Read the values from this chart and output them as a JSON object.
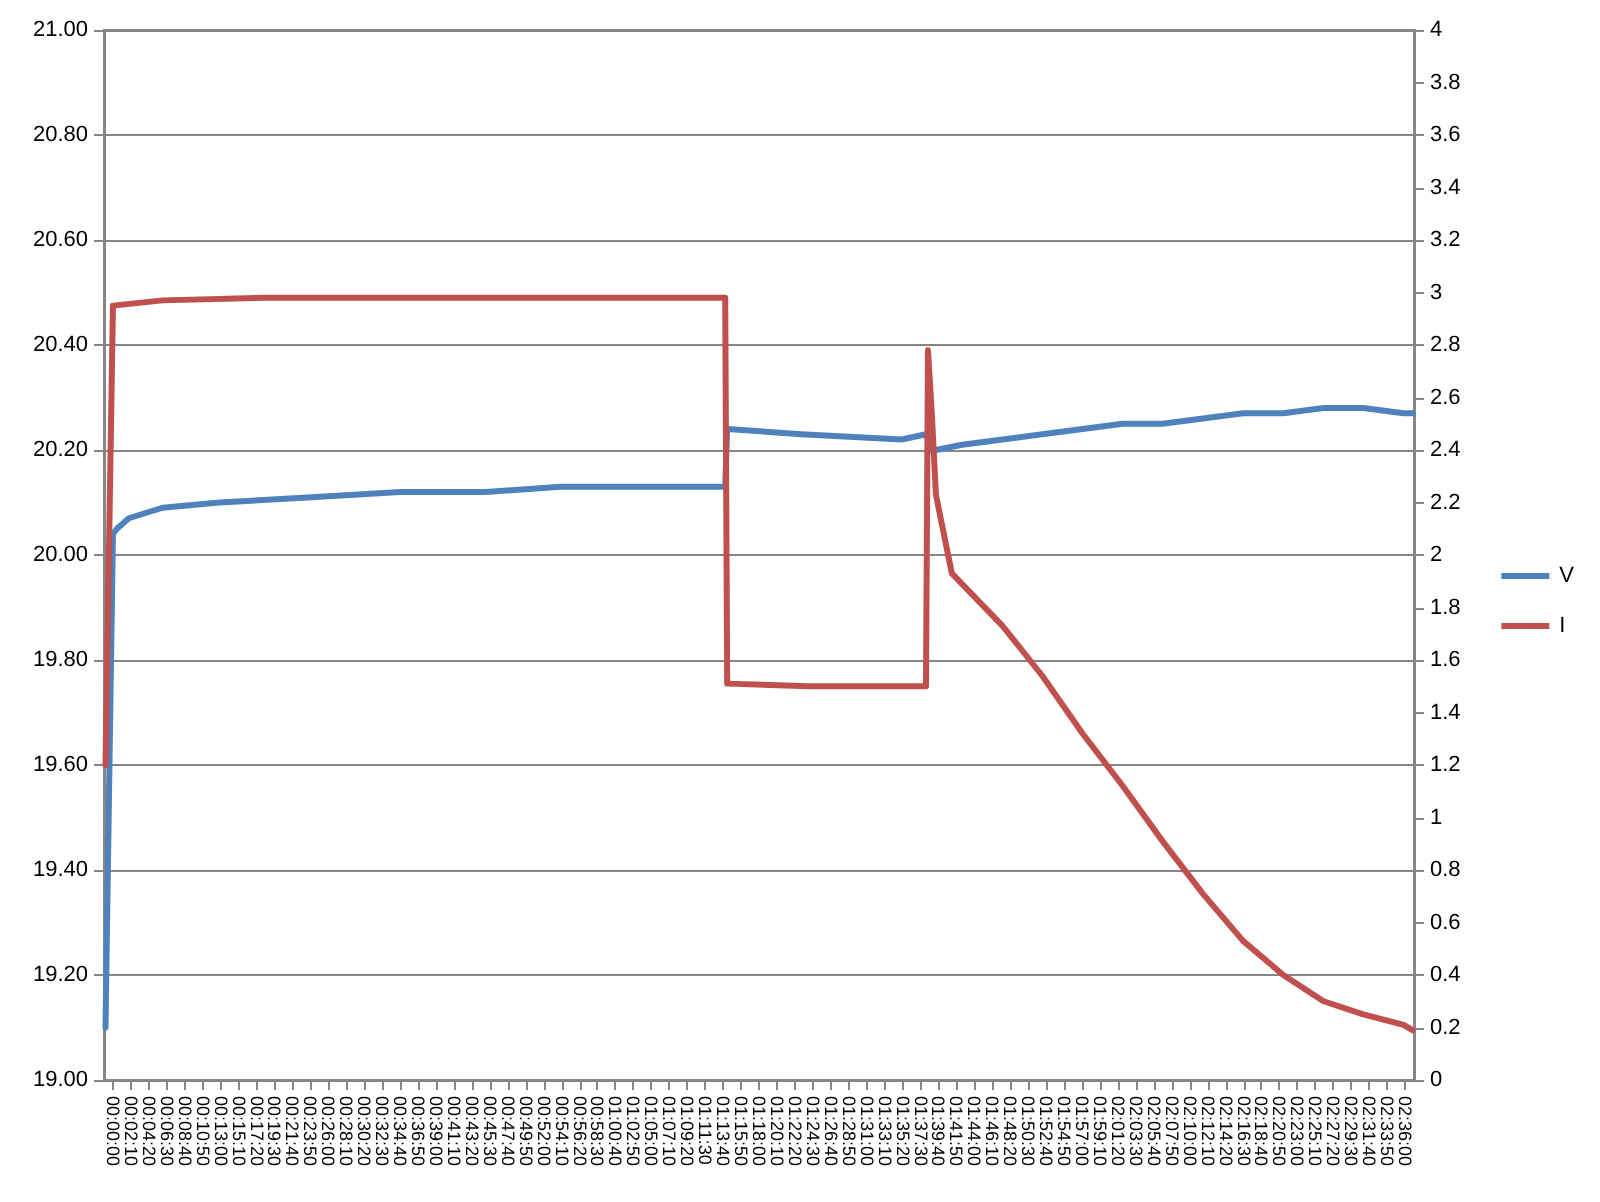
{
  "chart_data": {
    "type": "line",
    "legend": "right",
    "grid": "y",
    "marker": "none",
    "line_style": "solid",
    "xlim": [
      -0.018,
      2.618
    ],
    "xticks": [
      {
        "value": 0,
        "label": "00:00:00"
      },
      {
        "value": 0.0361,
        "label": "00:02:10"
      },
      {
        "value": 0.0722,
        "label": "00:04:20"
      },
      {
        "value": 0.1083,
        "label": "00:06:30"
      },
      {
        "value": 0.1444,
        "label": "00:08:40"
      },
      {
        "value": 0.1806,
        "label": "00:10:50"
      },
      {
        "value": 0.2167,
        "label": "00:13:00"
      },
      {
        "value": 0.2528,
        "label": "00:15:10"
      },
      {
        "value": 0.2889,
        "label": "00:17:20"
      },
      {
        "value": 0.325,
        "label": "00:19:30"
      },
      {
        "value": 0.3611,
        "label": "00:21:40"
      },
      {
        "value": 0.3972,
        "label": "00:23:50"
      },
      {
        "value": 0.4333,
        "label": "00:26:00"
      },
      {
        "value": 0.4694,
        "label": "00:28:10"
      },
      {
        "value": 0.5056,
        "label": "00:30:20"
      },
      {
        "value": 0.5417,
        "label": "00:32:30"
      },
      {
        "value": 0.5778,
        "label": "00:34:40"
      },
      {
        "value": 0.6139,
        "label": "00:36:50"
      },
      {
        "value": 0.65,
        "label": "00:39:00"
      },
      {
        "value": 0.6861,
        "label": "00:41:10"
      },
      {
        "value": 0.7222,
        "label": "00:43:20"
      },
      {
        "value": 0.7583,
        "label": "00:45:30"
      },
      {
        "value": 0.7944,
        "label": "00:47:40"
      },
      {
        "value": 0.8306,
        "label": "00:49:50"
      },
      {
        "value": 0.8667,
        "label": "00:52:00"
      },
      {
        "value": 0.9028,
        "label": "00:54:10"
      },
      {
        "value": 0.9389,
        "label": "00:56:20"
      },
      {
        "value": 0.975,
        "label": "00:58:30"
      },
      {
        "value": 1.0111,
        "label": "01:00:40"
      },
      {
        "value": 1.0472,
        "label": "01:02:50"
      },
      {
        "value": 1.0833,
        "label": "01:05:00"
      },
      {
        "value": 1.1194,
        "label": "01:07:10"
      },
      {
        "value": 1.1556,
        "label": "01:09:20"
      },
      {
        "value": 1.1917,
        "label": "01:11:30"
      },
      {
        "value": 1.2278,
        "label": "01:13:40"
      },
      {
        "value": 1.2639,
        "label": "01:15:50"
      },
      {
        "value": 1.3,
        "label": "01:18:00"
      },
      {
        "value": 1.3361,
        "label": "01:20:10"
      },
      {
        "value": 1.3722,
        "label": "01:22:20"
      },
      {
        "value": 1.4083,
        "label": "01:24:30"
      },
      {
        "value": 1.4444,
        "label": "01:26:40"
      },
      {
        "value": 1.4806,
        "label": "01:28:50"
      },
      {
        "value": 1.5167,
        "label": "01:31:00"
      },
      {
        "value": 1.5528,
        "label": "01:33:10"
      },
      {
        "value": 1.5889,
        "label": "01:35:20"
      },
      {
        "value": 1.625,
        "label": "01:37:30"
      },
      {
        "value": 1.6611,
        "label": "01:39:40"
      },
      {
        "value": 1.6972,
        "label": "01:41:50"
      },
      {
        "value": 1.7333,
        "label": "01:44:00"
      },
      {
        "value": 1.7694,
        "label": "01:46:10"
      },
      {
        "value": 1.8056,
        "label": "01:48:20"
      },
      {
        "value": 1.8417,
        "label": "01:50:30"
      },
      {
        "value": 1.8778,
        "label": "01:52:40"
      },
      {
        "value": 1.9139,
        "label": "01:54:50"
      },
      {
        "value": 1.95,
        "label": "01:57:00"
      },
      {
        "value": 1.9861,
        "label": "01:59:10"
      },
      {
        "value": 2.0222,
        "label": "02:01:20"
      },
      {
        "value": 2.0583,
        "label": "02:03:30"
      },
      {
        "value": 2.0944,
        "label": "02:05:40"
      },
      {
        "value": 2.1306,
        "label": "02:07:50"
      },
      {
        "value": 2.1667,
        "label": "02:10:00"
      },
      {
        "value": 2.2028,
        "label": "02:12:10"
      },
      {
        "value": 2.2389,
        "label": "02:14:20"
      },
      {
        "value": 2.275,
        "label": "02:16:30"
      },
      {
        "value": 2.3111,
        "label": "02:18:40"
      },
      {
        "value": 2.3472,
        "label": "02:20:50"
      },
      {
        "value": 2.3833,
        "label": "02:23:00"
      },
      {
        "value": 2.4194,
        "label": "02:25:10"
      },
      {
        "value": 2.4556,
        "label": "02:27:20"
      },
      {
        "value": 2.4917,
        "label": "02:29:30"
      },
      {
        "value": 2.5278,
        "label": "02:31:40"
      },
      {
        "value": 2.5639,
        "label": "02:33:50"
      },
      {
        "value": 2.6,
        "label": "02:36:00"
      }
    ],
    "ylim": [
      19,
      21
    ],
    "yticks": [
      {
        "value": 19,
        "label": "19.00"
      },
      {
        "value": 19.2,
        "label": "19.20"
      },
      {
        "value": 19.4,
        "label": "19.40"
      },
      {
        "value": 19.6,
        "label": "19.60"
      },
      {
        "value": 19.8,
        "label": "19.80"
      },
      {
        "value": 20,
        "label": "20.00"
      },
      {
        "value": 20.2,
        "label": "20.20"
      },
      {
        "value": 20.4,
        "label": "20.40"
      },
      {
        "value": 20.6,
        "label": "20.60"
      },
      {
        "value": 20.8,
        "label": "20.80"
      },
      {
        "value": 21,
        "label": "21.00"
      }
    ],
    "y2lim": [
      0,
      4
    ],
    "y2ticks": [
      0,
      0.2,
      0.4,
      0.6,
      0.8,
      1,
      1.2,
      1.4,
      1.6,
      1.8,
      2,
      2.2,
      2.4,
      2.6,
      2.8,
      3,
      3.2,
      3.4,
      3.6,
      3.8,
      4
    ],
    "series": [
      {
        "name": "V",
        "color": "#4f81bd",
        "x": [
          -0.015,
          0,
          0.008,
          0.032,
          0.1,
          0.214,
          0.4,
          0.578,
          0.75,
          0.901,
          1.1,
          1.232,
          1.236,
          1.385,
          1.587,
          1.636,
          1.648,
          1.656,
          1.709,
          1.79,
          1.87,
          1.951,
          2.032,
          2.112,
          2.193,
          2.274,
          2.355,
          2.436,
          2.516,
          2.597,
          2.615
        ],
        "values": [
          19.1,
          20.04,
          20.05,
          20.07,
          20.09,
          20.1,
          20.11,
          20.12,
          20.12,
          20.13,
          20.13,
          20.13,
          20.24,
          20.23,
          20.22,
          20.23,
          20.2,
          20.2,
          20.21,
          20.22,
          20.23,
          20.24,
          20.25,
          20.25,
          20.26,
          20.27,
          20.27,
          20.28,
          20.28,
          20.27,
          20.27
        ]
      },
      {
        "name": "I",
        "color": "#c0504d",
        "axis": "y2",
        "x": [
          -0.015,
          0,
          0.1,
          0.3,
          0.6,
          0.9,
          1.232,
          1.236,
          1.4,
          1.636,
          1.64,
          1.648,
          1.656,
          1.688,
          1.79,
          1.87,
          1.951,
          2.032,
          2.112,
          2.193,
          2.274,
          2.355,
          2.436,
          2.516,
          2.597,
          2.615
        ],
        "values": [
          1.2,
          2.95,
          2.97,
          2.98,
          2.98,
          2.98,
          2.98,
          1.51,
          1.5,
          1.5,
          2.78,
          2.53,
          2.23,
          1.93,
          1.73,
          1.54,
          1.32,
          1.12,
          0.91,
          0.71,
          0.53,
          0.4,
          0.3,
          0.25,
          0.21,
          0.19
        ]
      }
    ]
  }
}
